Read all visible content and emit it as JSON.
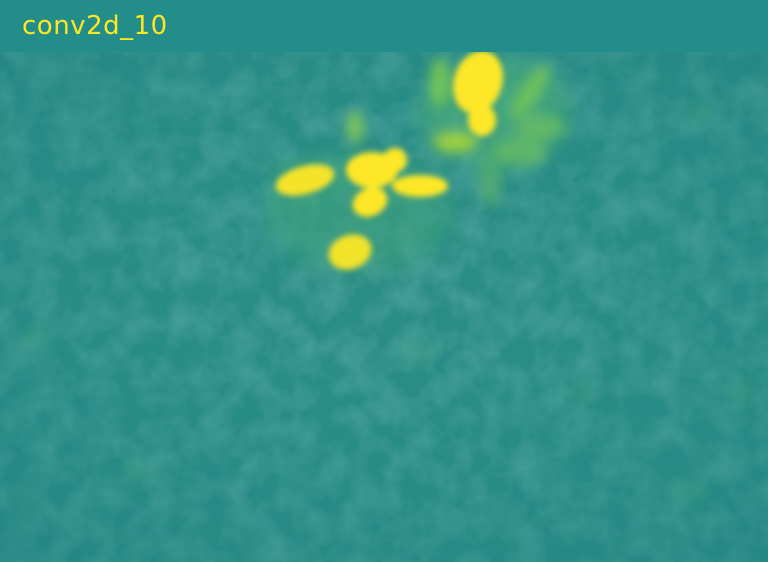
{
  "layer_name": "conv2d_10",
  "colormap": "viridis",
  "colors": {
    "background": "#1f8a88",
    "header": "#238d89",
    "low_activation": "#2a8c86",
    "mid_activation": "#73c55a",
    "high_activation": "#fde725"
  }
}
